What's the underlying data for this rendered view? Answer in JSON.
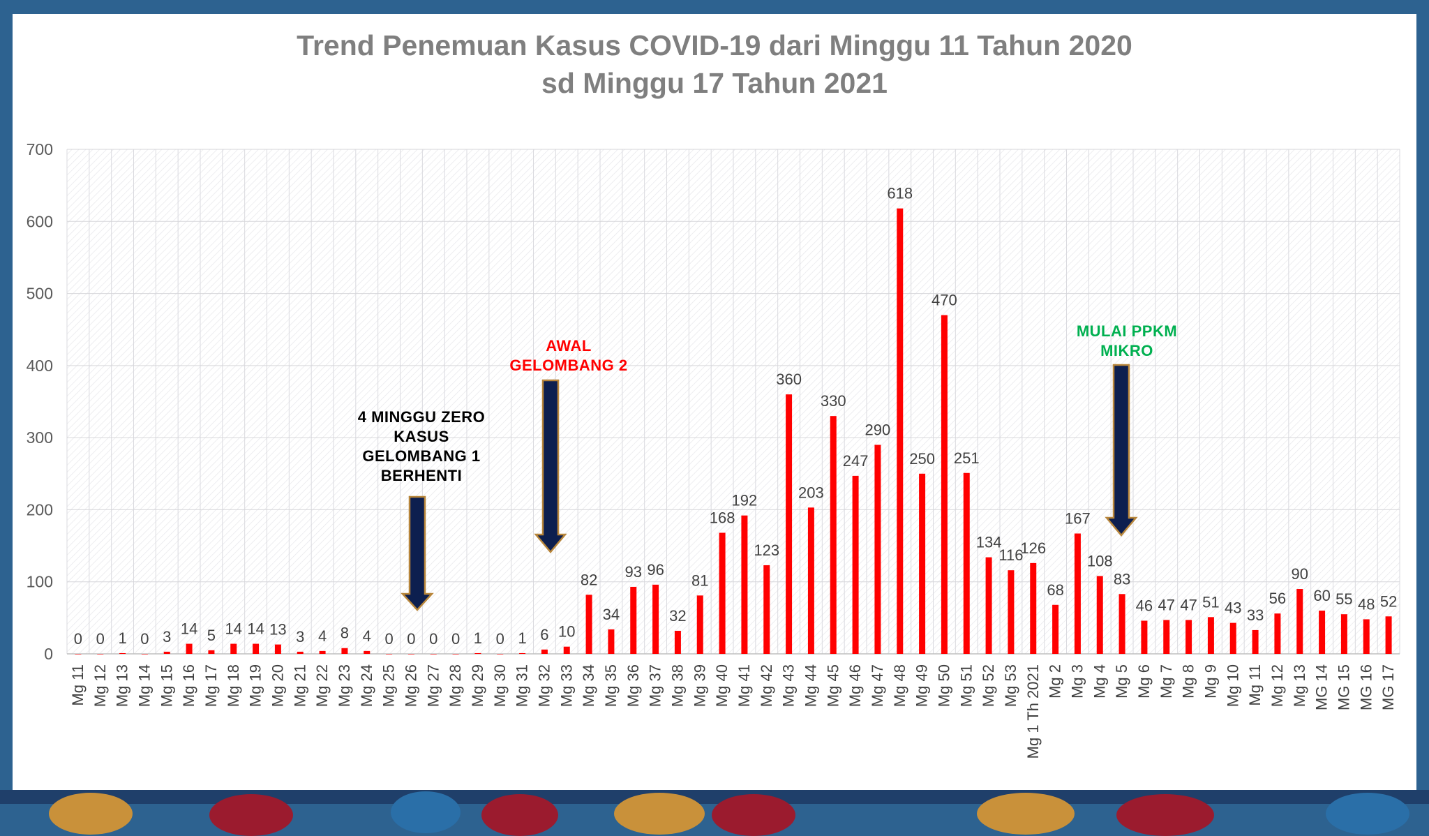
{
  "title_line1": "Trend Penemuan Kasus COVID-19 dari Minggu 11 Tahun 2020",
  "title_line2": "sd Minggu 17 Tahun 2021",
  "annotations": {
    "zero_cases": [
      "4 MINGGU ZERO",
      "KASUS",
      "GELOMBANG 1",
      "BERHENTI"
    ],
    "wave2": [
      "AWAL",
      "GELOMBANG 2"
    ],
    "ppkm": [
      "MULAI PPKM",
      "MIKRO"
    ]
  },
  "colors": {
    "bar": "#ff0000",
    "arrow_fill": "#0d1f4f",
    "arrow_edge": "#b8863b",
    "zero_text": "#000000",
    "wave2_text": "#ff0000",
    "ppkm_text": "#00b050",
    "title": "#7f7f7f",
    "frame": "#2d6290"
  },
  "chart_data": {
    "type": "bar",
    "title": "Trend Penemuan Kasus COVID-19 dari Minggu 11 Tahun 2020 sd Minggu 17 Tahun 2021",
    "xlabel": "",
    "ylabel": "",
    "ylim": [
      0,
      700
    ],
    "yticks": [
      0,
      100,
      200,
      300,
      400,
      500,
      600,
      700
    ],
    "grid": true,
    "categories": [
      "Mg 11",
      "Mg 12",
      "Mg 13",
      "Mg 14",
      "Mg 15",
      "Mg 16",
      "Mg 17",
      "Mg 18",
      "Mg 19",
      "Mg 20",
      "Mg 21",
      "Mg 22",
      "Mg 23",
      "Mg 24",
      "Mg 25",
      "Mg 26",
      "Mg 27",
      "Mg 28",
      "Mg 29",
      "Mg 30",
      "Mg 31",
      "Mg 32",
      "Mg 33",
      "Mg 34",
      "Mg 35",
      "Mg 36",
      "Mg 37",
      "Mg 38",
      "Mg 39",
      "Mg 40",
      "Mg 41",
      "Mg 42",
      "Mg 43",
      "Mg 44",
      "Mg 45",
      "Mg 46",
      "Mg 47",
      "Mg 48",
      "Mg 49",
      "Mg 50",
      "Mg 51",
      "Mg 52",
      "Mg 53",
      "Mg 1 Th 2021",
      "Mg 2",
      "Mg 3",
      "Mg 4",
      "Mg 5",
      "Mg 6",
      "Mg 7",
      "Mg 8",
      "Mg 9",
      "Mg 10",
      "Mg 11",
      "Mg 12",
      "Mg 13",
      "MG 14",
      "MG 15",
      "MG 16",
      "MG 17"
    ],
    "values": [
      0,
      0,
      1,
      0,
      3,
      14,
      5,
      14,
      14,
      13,
      3,
      4,
      8,
      4,
      0,
      0,
      0,
      0,
      1,
      0,
      1,
      6,
      10,
      82,
      34,
      93,
      96,
      32,
      81,
      168,
      192,
      123,
      360,
      203,
      330,
      247,
      290,
      618,
      250,
      470,
      251,
      134,
      116,
      126,
      68,
      167,
      108,
      83,
      46,
      47,
      47,
      51,
      43,
      33,
      56,
      90,
      60,
      55,
      48,
      52
    ]
  }
}
